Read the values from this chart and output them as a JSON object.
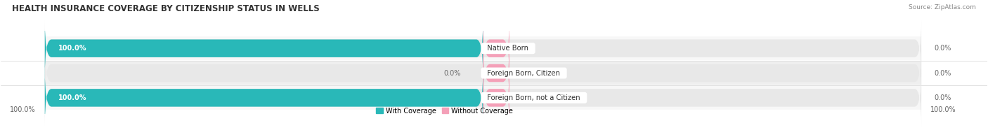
{
  "title": "HEALTH INSURANCE COVERAGE BY CITIZENSHIP STATUS IN WELLS",
  "source": "Source: ZipAtlas.com",
  "categories": [
    "Native Born",
    "Foreign Born, Citizen",
    "Foreign Born, not a Citizen"
  ],
  "with_coverage": [
    100.0,
    0.0,
    100.0
  ],
  "without_coverage": [
    0.0,
    0.0,
    0.0
  ],
  "color_with": "#29b8b8",
  "color_without": "#f4a0b8",
  "color_bg_bar": "#e8e8e8",
  "color_bg_row_alt": "#f5f5f5",
  "figsize": [
    14.06,
    1.96
  ],
  "dpi": 100,
  "legend_with": "With Coverage",
  "legend_without": "Without Coverage",
  "title_fontsize": 8.5,
  "label_fontsize": 7,
  "category_fontsize": 7.2,
  "source_fontsize": 6.5
}
